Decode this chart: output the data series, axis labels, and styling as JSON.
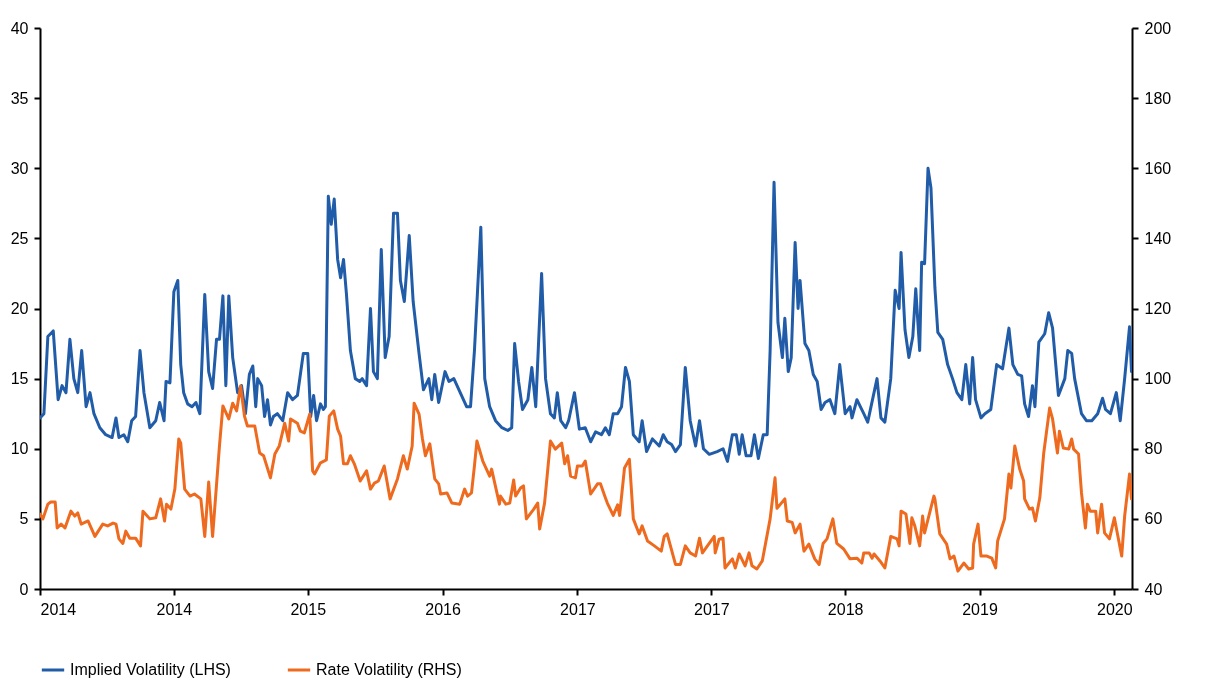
{
  "chart_data": {
    "type": "line",
    "xlim": [
      "2014-01-01",
      "2020-02-06"
    ],
    "xticks": [
      {
        "value": "2014-01",
        "label": "2014"
      },
      {
        "value": "2014-10",
        "label": "2014"
      },
      {
        "value": "2015-07",
        "label": "2015"
      },
      {
        "value": "2016-04",
        "label": "2016"
      },
      {
        "value": "2017-01",
        "label": "2017"
      },
      {
        "value": "2017-10",
        "label": "2017"
      },
      {
        "value": "2018-07",
        "label": "2018"
      },
      {
        "value": "2019-04",
        "label": "2019"
      },
      {
        "value": "2020-01",
        "label": "2020"
      }
    ],
    "ylim": [
      0,
      40
    ],
    "yticks": [
      0,
      5,
      10,
      15,
      20,
      25,
      30,
      35,
      40
    ],
    "y2lim": [
      40,
      200
    ],
    "y2ticks": [
      40,
      60,
      80,
      100,
      120,
      140,
      160,
      180,
      200
    ],
    "legend": "bottom",
    "series": [
      {
        "name": "Implied Volatility (LHS)",
        "color": "#215ca8",
        "x": [
          "2014-01-01",
          "2014-01-09",
          "2014-01-17",
          "2014-01-28",
          "2014-02-07",
          "2014-02-15",
          "2014-02-23",
          "2014-03-03",
          "2014-03-11",
          "2014-03-19",
          "2014-03-27",
          "2014-04-05",
          "2014-04-13",
          "2014-04-21",
          "2014-05-03",
          "2014-05-15",
          "2014-05-28",
          "2014-06-05",
          "2014-06-11",
          "2014-06-21",
          "2014-06-29",
          "2014-07-07",
          "2014-07-15",
          "2014-07-24",
          "2014-08-01",
          "2014-08-13",
          "2014-08-25",
          "2014-09-02",
          "2014-09-11",
          "2014-09-15",
          "2014-09-23",
          "2014-10-01",
          "2014-10-09",
          "2014-10-15",
          "2014-10-21",
          "2014-10-29",
          "2014-11-07",
          "2014-11-15",
          "2014-11-23",
          "2014-12-03",
          "2014-12-11",
          "2014-12-19",
          "2014-12-27",
          "2015-01-02",
          "2015-01-09",
          "2015-01-15",
          "2015-01-21",
          "2015-01-29",
          "2015-02-08",
          "2015-02-16",
          "2015-02-24",
          "2015-03-04",
          "2015-03-11",
          "2015-03-17",
          "2015-03-21",
          "2015-03-29",
          "2015-04-04",
          "2015-04-10",
          "2015-04-16",
          "2015-04-22",
          "2015-04-30",
          "2015-05-11",
          "2015-05-21",
          "2015-05-31",
          "2015-06-10",
          "2015-06-22",
          "2015-07-01",
          "2015-07-07",
          "2015-07-13",
          "2015-07-19",
          "2015-07-27",
          "2015-08-02",
          "2015-08-06",
          "2015-08-12",
          "2015-08-18",
          "2015-08-24",
          "2015-08-31",
          "2015-09-06",
          "2015-09-12",
          "2015-09-18",
          "2015-09-26",
          "2015-10-06",
          "2015-10-15",
          "2015-10-20",
          "2015-10-29",
          "2015-11-06",
          "2015-11-12",
          "2015-11-20",
          "2015-11-28",
          "2015-12-06",
          "2015-12-14",
          "2015-12-23",
          "2015-12-31",
          "2016-01-06",
          "2016-01-14",
          "2016-01-24",
          "2016-02-01",
          "2016-02-13",
          "2016-02-22",
          "2016-03-04",
          "2016-03-10",
          "2016-03-16",
          "2016-03-24",
          "2016-04-06",
          "2016-04-14",
          "2016-04-24",
          "2016-05-20",
          "2016-05-28",
          "2016-06-05",
          "2016-06-18",
          "2016-06-26",
          "2016-07-06",
          "2016-07-18",
          "2016-07-31",
          "2016-08-12",
          "2016-08-20",
          "2016-08-26",
          "2016-09-03",
          "2016-09-11",
          "2016-09-22",
          "2016-09-30",
          "2016-10-08",
          "2016-10-20",
          "2016-10-28",
          "2016-11-07",
          "2016-11-15",
          "2016-11-21",
          "2016-11-28",
          "2016-12-08",
          "2016-12-14",
          "2016-12-26",
          "2017-01-05",
          "2017-01-17",
          "2017-01-28",
          "2017-02-07",
          "2017-02-19",
          "2017-02-27",
          "2017-03-07",
          "2017-03-15",
          "2017-03-24",
          "2017-04-01",
          "2017-04-09",
          "2017-04-17",
          "2017-04-25",
          "2017-05-07",
          "2017-05-13",
          "2017-05-22",
          "2017-06-03",
          "2017-06-17",
          "2017-06-25",
          "2017-07-03",
          "2017-07-12",
          "2017-07-20",
          "2017-07-30",
          "2017-08-09",
          "2017-08-19",
          "2017-08-30",
          "2017-09-07",
          "2017-09-15",
          "2017-09-27",
          "2017-10-13",
          "2017-10-25",
          "2017-11-03",
          "2017-11-13",
          "2017-11-21",
          "2017-11-27",
          "2017-12-03",
          "2017-12-11",
          "2017-12-21",
          "2017-12-28",
          "2018-01-05",
          "2018-01-15",
          "2018-01-23",
          "2018-01-29",
          "2018-02-06",
          "2018-02-14",
          "2018-02-23",
          "2018-02-28",
          "2018-03-07",
          "2018-03-13",
          "2018-03-21",
          "2018-03-27",
          "2018-03-31",
          "2018-04-10",
          "2018-04-18",
          "2018-04-27",
          "2018-05-05",
          "2018-05-13",
          "2018-05-21",
          "2018-05-31",
          "2018-06-10",
          "2018-06-20",
          "2018-07-01",
          "2018-07-11",
          "2018-07-15",
          "2018-07-25",
          "2018-08-08",
          "2018-08-16",
          "2018-09-04",
          "2018-09-12",
          "2018-09-20",
          "2018-10-02",
          "2018-10-11",
          "2018-10-19",
          "2018-10-23",
          "2018-10-31",
          "2018-11-08",
          "2018-11-16",
          "2018-11-22",
          "2018-11-30",
          "2018-12-04",
          "2018-12-10",
          "2018-12-17",
          "2018-12-23",
          "2018-12-31",
          "2019-01-06",
          "2019-01-16",
          "2019-01-26",
          "2019-02-05",
          "2019-02-14",
          "2019-02-24",
          "2019-03-04",
          "2019-03-12",
          "2019-03-18",
          "2019-03-24",
          "2019-04-04",
          "2019-04-12",
          "2019-04-24",
          "2019-05-06",
          "2019-05-18",
          "2019-05-31",
          "2019-06-08",
          "2019-06-18",
          "2019-06-26",
          "2019-07-02",
          "2019-07-10",
          "2019-07-18",
          "2019-07-23",
          "2019-07-31",
          "2019-08-12",
          "2019-08-20",
          "2019-08-28",
          "2019-09-09",
          "2019-09-22",
          "2019-09-28",
          "2019-10-06",
          "2019-10-12",
          "2019-10-26",
          "2019-11-05",
          "2019-11-16",
          "2019-11-28",
          "2019-12-08",
          "2019-12-14",
          "2019-12-24",
          "2020-01-01",
          "2020-01-05",
          "2020-01-13",
          "2020-01-22",
          "2020-02-01",
          "2020-02-05"
        ],
        "values": [
          12.2,
          12.5,
          18.0,
          18.4,
          13.5,
          14.5,
          14.0,
          17.8,
          15.0,
          14.0,
          17.0,
          13.0,
          14.0,
          12.5,
          11.5,
          11.0,
          10.8,
          12.2,
          10.8,
          11.0,
          10.5,
          12.0,
          12.3,
          17.0,
          14.0,
          11.5,
          12.0,
          13.3,
          12.0,
          14.8,
          14.7,
          21.2,
          22.0,
          16.0,
          14.0,
          13.2,
          13.0,
          13.3,
          12.5,
          21.0,
          15.5,
          14.3,
          17.8,
          17.8,
          20.9,
          14.5,
          20.9,
          16.5,
          14.0,
          14.5,
          12.5,
          15.3,
          15.9,
          13.0,
          15.0,
          14.5,
          12.3,
          13.5,
          11.7,
          12.3,
          12.5,
          12.0,
          14.0,
          13.5,
          13.8,
          16.8,
          16.8,
          12.3,
          13.8,
          12.0,
          13.2,
          12.8,
          13.0,
          28.0,
          26.0,
          27.8,
          23.5,
          22.2,
          23.5,
          21.0,
          17.0,
          15.0,
          14.8,
          15.0,
          14.5,
          20.0,
          15.5,
          15.0,
          24.2,
          16.5,
          18.0,
          26.8,
          26.8,
          22.0,
          20.5,
          25.2,
          20.5,
          16.8,
          14.2,
          15.0,
          13.5,
          15.3,
          13.3,
          15.5,
          14.8,
          15.0,
          13.0,
          13.0,
          17.0,
          25.8,
          15.0,
          13.0,
          12.0,
          11.5,
          11.3,
          11.5,
          17.5,
          14.8,
          12.8,
          13.5,
          15.8,
          13.0,
          22.5,
          15.0,
          12.5,
          12.2,
          14.0,
          12.0,
          11.5,
          12.0,
          14.0,
          11.4,
          11.5,
          10.5,
          11.2,
          11.0,
          11.5,
          11.0,
          12.5,
          12.5,
          13.0,
          15.8,
          14.8,
          11.0,
          10.5,
          12.0,
          9.8,
          10.7,
          10.2,
          11.0,
          10.5,
          10.3,
          9.8,
          10.3,
          15.8,
          12.0,
          10.2,
          12.0,
          10.0,
          9.6,
          9.8,
          10.0,
          9.1,
          11.0,
          11.0,
          9.6,
          11.0,
          9.5,
          9.5,
          11.0,
          9.3,
          11.0,
          11.0,
          17.0,
          29.0,
          19.0,
          16.5,
          19.3,
          15.5,
          16.5,
          24.7,
          20.0,
          22.0,
          17.5,
          17.0,
          15.3,
          14.8,
          12.8,
          13.3,
          13.5,
          12.5,
          16.0,
          12.5,
          13.0,
          12.2,
          13.5,
          12.5,
          11.9,
          15.0,
          12.2,
          11.9,
          15.0,
          21.3,
          20.0,
          24.0,
          18.5,
          16.5,
          18.0,
          21.4,
          17.0,
          23.3,
          23.2,
          30.0,
          28.6,
          21.5,
          18.3,
          17.8,
          16.0,
          15.0,
          14.0,
          13.5,
          16.0,
          13.2,
          16.5,
          13.5,
          12.2,
          12.5,
          12.8,
          16.0,
          15.7,
          18.6,
          16.0,
          15.3,
          15.2,
          13.2,
          12.3,
          14.5,
          13.0,
          17.6,
          18.2,
          19.7,
          18.6,
          13.8,
          15.0,
          17.0,
          16.8,
          15.0,
          12.5,
          12.0,
          12.0,
          12.5,
          13.6,
          12.8,
          12.5,
          13.5,
          14.0,
          12.0,
          15.0,
          18.7,
          15.5
        ]
      },
      {
        "name": "Rate Volatility (RHS)",
        "color": "#ee6a1f",
        "axis": "y2",
        "x": [
          "2014-01-01",
          "2014-01-07",
          "2014-01-17",
          "2014-01-23",
          "2014-02-01",
          "2014-02-05",
          "2014-02-13",
          "2014-02-21",
          "2014-03-05",
          "2014-03-13",
          "2014-03-19",
          "2014-03-26",
          "2014-04-09",
          "2014-04-23",
          "2014-05-09",
          "2014-05-19",
          "2014-05-30",
          "2014-06-05",
          "2014-06-11",
          "2014-06-19",
          "2014-06-25",
          "2014-07-03",
          "2014-07-15",
          "2014-07-25",
          "2014-07-30",
          "2014-08-13",
          "2014-08-25",
          "2014-09-04",
          "2014-09-12",
          "2014-09-16",
          "2014-09-25",
          "2014-10-03",
          "2014-10-11",
          "2014-10-15",
          "2014-10-23",
          "2014-11-03",
          "2014-11-12",
          "2014-11-25",
          "2014-12-03",
          "2014-12-11",
          "2014-12-19",
          "2015-01-02",
          "2015-01-09",
          "2015-01-21",
          "2015-01-29",
          "2015-02-06",
          "2015-02-14",
          "2015-02-22",
          "2015-02-28",
          "2015-03-15",
          "2015-03-25",
          "2015-04-02",
          "2015-04-16",
          "2015-04-25",
          "2015-05-04",
          "2015-05-15",
          "2015-05-23",
          "2015-05-27",
          "2015-06-10",
          "2015-06-16",
          "2015-06-24",
          "2015-07-05",
          "2015-07-11",
          "2015-07-15",
          "2015-07-27",
          "2015-08-08",
          "2015-08-14",
          "2015-08-23",
          "2015-08-31",
          "2015-09-06",
          "2015-09-12",
          "2015-09-20",
          "2015-09-26",
          "2015-10-04",
          "2015-10-16",
          "2015-10-29",
          "2015-11-06",
          "2015-11-14",
          "2015-11-22",
          "2015-11-26",
          "2015-12-04",
          "2015-12-16",
          "2015-12-31",
          "2016-01-12",
          "2016-01-20",
          "2016-01-30",
          "2016-02-03",
          "2016-02-13",
          "2016-02-20",
          "2016-02-26",
          "2016-03-06",
          "2016-03-16",
          "2016-03-24",
          "2016-03-28",
          "2016-04-10",
          "2016-04-20",
          "2016-05-06",
          "2016-05-16",
          "2016-05-22",
          "2016-05-30",
          "2016-06-05",
          "2016-06-10",
          "2016-06-22",
          "2016-07-06",
          "2016-07-10",
          "2016-07-26",
          "2016-07-28",
          "2016-08-08",
          "2016-08-16",
          "2016-08-24",
          "2016-08-28",
          "2016-09-07",
          "2016-09-13",
          "2016-09-19",
          "2016-10-04",
          "2016-10-12",
          "2016-10-16",
          "2016-10-26",
          "2016-11-07",
          "2016-11-17",
          "2016-11-30",
          "2016-12-06",
          "2016-12-12",
          "2016-12-18",
          "2016-12-28",
          "2017-01-01",
          "2017-01-11",
          "2017-01-17",
          "2017-01-28",
          "2017-02-11",
          "2017-02-17",
          "2017-02-27",
          "2017-03-03",
          "2017-03-15",
          "2017-03-24",
          "2017-03-28",
          "2017-04-07",
          "2017-04-17",
          "2017-04-25",
          "2017-05-07",
          "2017-05-13",
          "2017-05-24",
          "2017-06-07",
          "2017-06-21",
          "2017-06-27",
          "2017-07-03",
          "2017-07-20",
          "2017-07-30",
          "2017-08-09",
          "2017-08-19",
          "2017-08-30",
          "2017-09-07",
          "2017-09-13",
          "2017-10-07",
          "2017-10-09",
          "2017-10-17",
          "2017-10-25",
          "2017-10-29",
          "2017-11-13",
          "2017-11-19",
          "2017-11-27",
          "2017-12-09",
          "2017-12-17",
          "2017-12-23",
          "2018-01-02",
          "2018-01-13",
          "2018-01-29",
          "2018-02-08",
          "2018-02-12",
          "2018-02-28",
          "2018-03-05",
          "2018-03-15",
          "2018-03-21",
          "2018-03-31",
          "2018-04-08",
          "2018-04-18",
          "2018-04-30",
          "2018-05-09",
          "2018-05-17",
          "2018-05-25",
          "2018-06-06",
          "2018-06-14",
          "2018-06-28",
          "2018-07-11",
          "2018-07-25",
          "2018-08-04",
          "2018-08-08",
          "2018-08-19",
          "2018-08-25",
          "2018-08-29",
          "2018-09-10",
          "2018-09-20",
          "2018-10-02",
          "2018-10-15",
          "2018-10-19",
          "2018-10-23",
          "2018-11-02",
          "2018-11-10",
          "2018-11-14",
          "2018-11-20",
          "2018-11-30",
          "2018-12-06",
          "2018-12-10",
          "2018-12-29",
          "2018-12-31",
          "2019-01-10",
          "2019-01-24",
          "2019-01-31",
          "2019-02-08",
          "2019-02-16",
          "2019-02-28",
          "2019-03-10",
          "2019-03-18",
          "2019-03-20",
          "2019-03-29",
          "2019-04-04",
          "2019-04-16",
          "2019-04-26",
          "2019-05-04",
          "2019-05-08",
          "2019-05-22",
          "2019-05-31",
          "2019-06-04",
          "2019-06-12",
          "2019-06-22",
          "2019-06-30",
          "2019-07-02",
          "2019-07-12",
          "2019-07-18",
          "2019-07-24",
          "2019-08-02",
          "2019-08-10",
          "2019-08-22",
          "2019-08-28",
          "2019-09-07",
          "2019-09-11",
          "2019-09-19",
          "2019-09-30",
          "2019-10-06",
          "2019-10-10",
          "2019-10-20",
          "2019-10-26",
          "2019-11-03",
          "2019-11-07",
          "2019-11-13",
          "2019-11-24",
          "2019-11-28",
          "2019-12-06",
          "2019-12-12",
          "2019-12-22",
          "2020-01-01",
          "2020-01-16",
          "2020-01-22",
          "2020-02-01",
          "2020-02-05"
        ],
        "values": [
          61.4,
          60,
          64.2,
          64.8,
          64.8,
          57.4,
          58.5,
          57.4,
          62.2,
          60.8,
          61.7,
          58.5,
          59.4,
          55,
          58.5,
          58,
          58.8,
          58.5,
          54.3,
          53,
          56.5,
          54.5,
          54.5,
          52.3,
          62.2,
          60,
          60.3,
          65.7,
          59.4,
          64.2,
          62.8,
          68.5,
          82.8,
          81.6,
          68.5,
          66.5,
          67.1,
          65.7,
          55,
          70.5,
          55,
          80.8,
          92.2,
          88.5,
          93,
          90.8,
          97.9,
          89.3,
          86.5,
          86.5,
          78.8,
          78,
          71.7,
          78.5,
          80.8,
          87.3,
          82.2,
          88.5,
          87.3,
          85,
          84.5,
          89.9,
          73.7,
          72.8,
          76,
          76.8,
          89.3,
          90.8,
          85.6,
          83.6,
          75.7,
          75.7,
          78,
          75.7,
          70.8,
          73.7,
          68.5,
          70.2,
          70.8,
          72.2,
          75.1,
          65.7,
          71.4,
          78,
          74.2,
          80.8,
          93,
          89.9,
          82.8,
          78,
          81.4,
          71.4,
          70,
          67.1,
          67.4,
          64.5,
          64.2,
          68.5,
          66.5,
          67.4,
          75.1,
          82.2,
          76.5,
          72.2,
          74.2,
          64.2,
          66.5,
          64.2,
          64.5,
          71.1,
          66.5,
          68.8,
          69.4,
          60,
          62.8,
          64.5,
          57.1,
          64.5,
          82.2,
          79.9,
          81.6,
          75.7,
          78,
          72.2,
          71.7,
          75.1,
          75.1,
          76.5,
          67.1,
          70,
          70,
          66,
          64.5,
          61,
          64,
          61,
          74.5,
          77,
          60,
          55.7,
          58,
          53.7,
          52.3,
          50.8,
          55,
          55.7,
          47,
          47,
          52.3,
          50.3,
          49.4,
          54.5,
          50.3,
          55,
          50.3,
          54.2,
          54.5,
          46,
          48.6,
          46,
          50,
          46.6,
          50.3,
          46.6,
          45.7,
          48,
          60,
          71.7,
          63,
          65.7,
          59.4,
          59,
          56,
          58.5,
          50.8,
          52.8,
          48.6,
          47,
          53,
          54.3,
          60,
          53,
          51.4,
          48.6,
          48.8,
          47.4,
          50.3,
          50.3,
          48.8,
          50,
          48,
          46,
          55,
          54.3,
          52.3,
          62.2,
          61.4,
          53,
          60.3,
          58,
          52.3,
          60.8,
          56,
          66.5,
          65.7,
          55.7,
          52.8,
          48.6,
          49.4,
          45.1,
          47.4,
          45.7,
          46,
          52.8,
          58.5,
          49.4,
          49.4,
          48.8,
          46,
          53.7,
          60,
          72.8,
          68.8,
          80.8,
          74.2,
          70.8,
          65.7,
          62.8,
          63.1,
          59.4,
          66,
          78.8,
          91.6,
          88.5,
          78.8,
          85,
          80.2,
          79.9,
          82.8,
          79.9,
          78.5,
          67.4,
          57.4,
          64.2,
          62.2,
          62.2,
          56,
          64.2,
          56,
          54.3,
          60.3,
          49.4,
          60.8,
          72.8,
          65.7
        ]
      }
    ]
  }
}
